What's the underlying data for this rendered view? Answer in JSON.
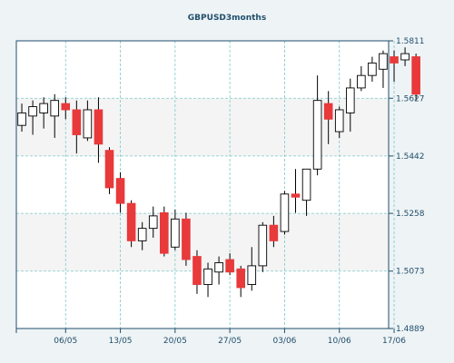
{
  "chart_data": {
    "type": "candlestick",
    "title": "GBPUSD3months",
    "y_axis": {
      "position": "right",
      "ticks": [
        1.4889,
        1.5073,
        1.5258,
        1.5442,
        1.5627,
        1.5811
      ],
      "tick_labels": [
        "1.4889",
        "1.5073",
        "1.5258",
        "1.5442",
        "1.5627",
        "1.5811"
      ],
      "ylim": [
        1.4889,
        1.5811
      ]
    },
    "x_axis": {
      "tick_labels": [
        "06/05",
        "13/05",
        "20/05",
        "27/05",
        "03/06",
        "10/06",
        "17/06"
      ],
      "tick_positions": [
        4,
        9,
        14,
        19,
        24,
        29,
        34
      ],
      "xlim": [
        -0.5,
        33.5
      ]
    },
    "grid": true,
    "colors": {
      "up_fill": "#ffffff",
      "down_fill": "#e8393b",
      "wick": "#000000",
      "grid": "#7ec8c8",
      "axis": "#1f4e6b",
      "background_band": "#f4f4f4"
    },
    "candles": [
      {
        "o": 1.554,
        "h": 1.561,
        "l": 1.552,
        "c": 1.558
      },
      {
        "o": 1.557,
        "h": 1.562,
        "l": 1.551,
        "c": 1.56
      },
      {
        "o": 1.558,
        "h": 1.563,
        "l": 1.553,
        "c": 1.561
      },
      {
        "o": 1.557,
        "h": 1.564,
        "l": 1.55,
        "c": 1.562
      },
      {
        "o": 1.561,
        "h": 1.563,
        "l": 1.556,
        "c": 1.559
      },
      {
        "o": 1.559,
        "h": 1.562,
        "l": 1.545,
        "c": 1.551
      },
      {
        "o": 1.55,
        "h": 1.562,
        "l": 1.549,
        "c": 1.559
      },
      {
        "o": 1.559,
        "h": 1.563,
        "l": 1.542,
        "c": 1.548
      },
      {
        "o": 1.546,
        "h": 1.547,
        "l": 1.532,
        "c": 1.534
      },
      {
        "o": 1.537,
        "h": 1.539,
        "l": 1.526,
        "c": 1.529
      },
      {
        "o": 1.529,
        "h": 1.53,
        "l": 1.515,
        "c": 1.517
      },
      {
        "o": 1.517,
        "h": 1.523,
        "l": 1.514,
        "c": 1.521
      },
      {
        "o": 1.521,
        "h": 1.528,
        "l": 1.518,
        "c": 1.525
      },
      {
        "o": 1.526,
        "h": 1.528,
        "l": 1.512,
        "c": 1.513
      },
      {
        "o": 1.515,
        "h": 1.527,
        "l": 1.514,
        "c": 1.524
      },
      {
        "o": 1.524,
        "h": 1.526,
        "l": 1.509,
        "c": 1.511
      },
      {
        "o": 1.512,
        "h": 1.514,
        "l": 1.5,
        "c": 1.503
      },
      {
        "o": 1.503,
        "h": 1.51,
        "l": 1.499,
        "c": 1.508
      },
      {
        "o": 1.507,
        "h": 1.512,
        "l": 1.503,
        "c": 1.51
      },
      {
        "o": 1.511,
        "h": 1.513,
        "l": 1.506,
        "c": 1.507
      },
      {
        "o": 1.508,
        "h": 1.509,
        "l": 1.499,
        "c": 1.502
      },
      {
        "o": 1.503,
        "h": 1.515,
        "l": 1.501,
        "c": 1.509
      },
      {
        "o": 1.509,
        "h": 1.523,
        "l": 1.507,
        "c": 1.522
      },
      {
        "o": 1.522,
        "h": 1.525,
        "l": 1.515,
        "c": 1.517
      },
      {
        "o": 1.52,
        "h": 1.533,
        "l": 1.519,
        "c": 1.532
      },
      {
        "o": 1.532,
        "h": 1.54,
        "l": 1.526,
        "c": 1.531
      },
      {
        "o": 1.53,
        "h": 1.54,
        "l": 1.525,
        "c": 1.54
      },
      {
        "o": 1.54,
        "h": 1.57,
        "l": 1.538,
        "c": 1.562
      },
      {
        "o": 1.561,
        "h": 1.565,
        "l": 1.548,
        "c": 1.556
      },
      {
        "o": 1.552,
        "h": 1.56,
        "l": 1.55,
        "c": 1.559
      },
      {
        "o": 1.558,
        "h": 1.569,
        "l": 1.552,
        "c": 1.566
      },
      {
        "o": 1.566,
        "h": 1.573,
        "l": 1.565,
        "c": 1.57
      },
      {
        "o": 1.57,
        "h": 1.576,
        "l": 1.568,
        "c": 1.574
      },
      {
        "o": 1.572,
        "h": 1.578,
        "l": 1.566,
        "c": 1.577
      },
      {
        "o": 1.576,
        "h": 1.578,
        "l": 1.568,
        "c": 1.574
      },
      {
        "o": 1.575,
        "h": 1.579,
        "l": 1.573,
        "c": 1.577
      },
      {
        "o": 1.576,
        "h": 1.577,
        "l": 1.562,
        "c": 1.564
      }
    ]
  }
}
